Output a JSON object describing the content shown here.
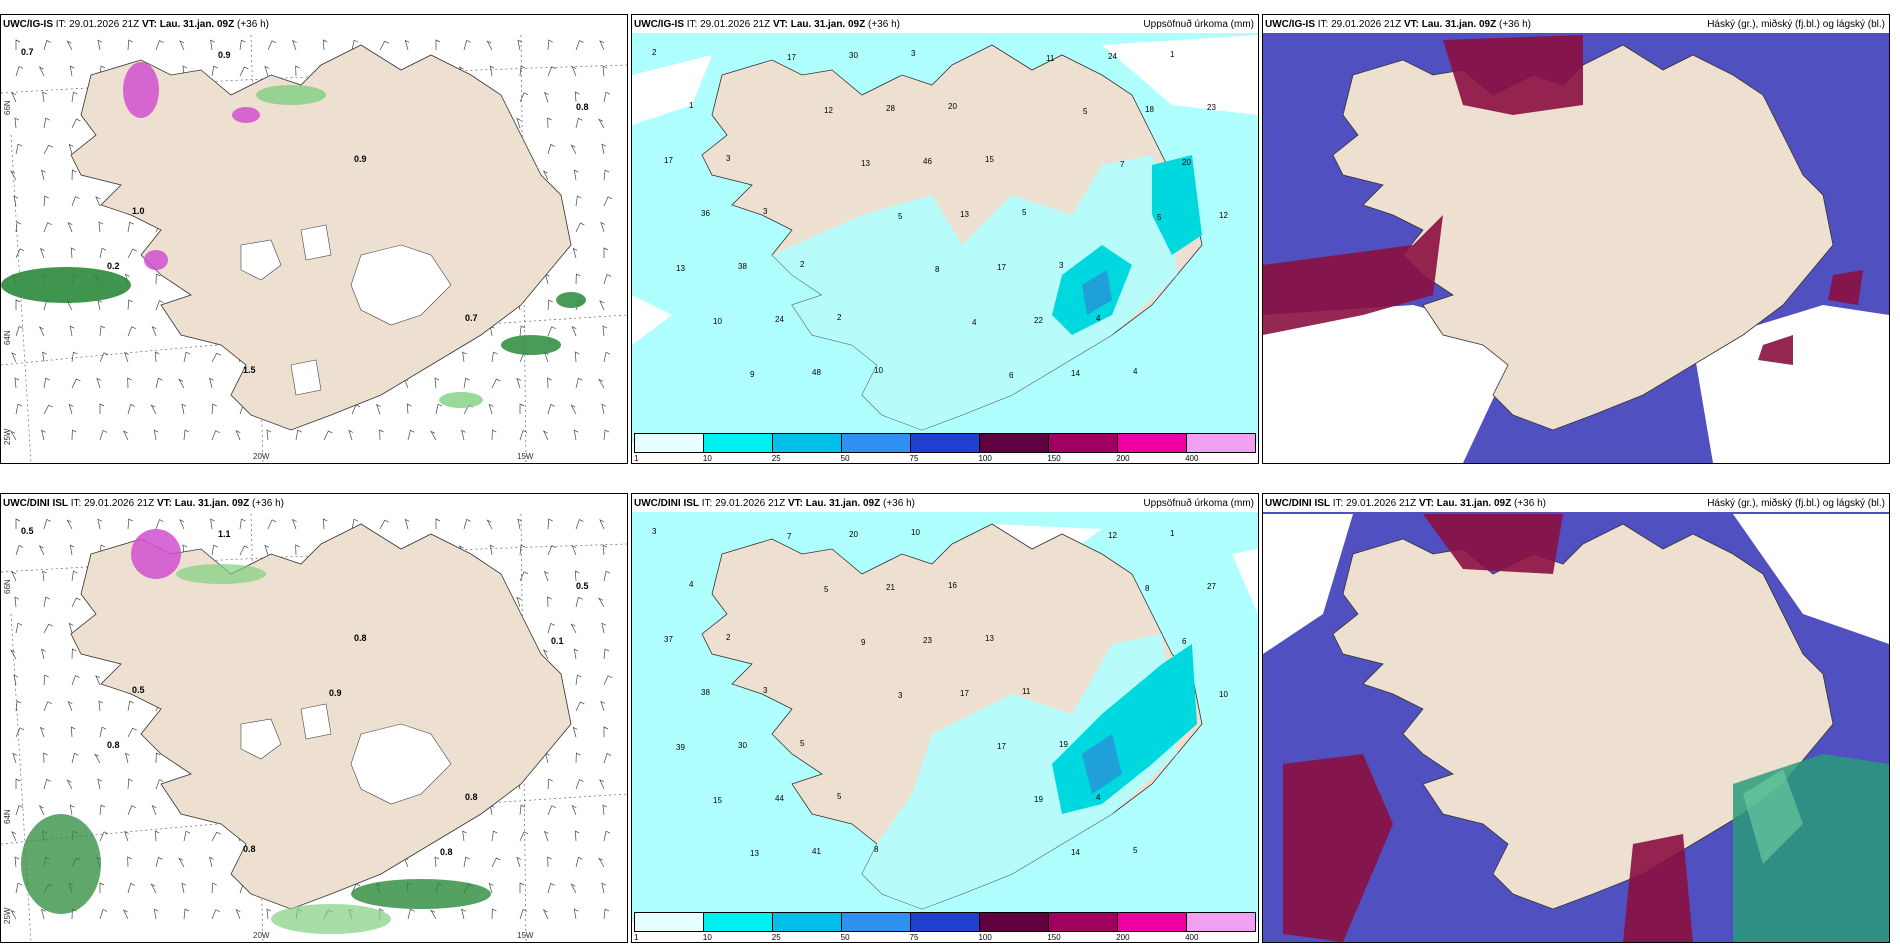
{
  "panels": [
    {
      "id": "p1",
      "model": "UWC/IG-IS",
      "it_label": "IT:",
      "it": "29.01.2026 21Z",
      "vt_label": "VT:",
      "vt": "Lau. 31.jan. 09Z",
      "lead": "(+36 h)",
      "right_title": "",
      "type": "wind"
    },
    {
      "id": "p2",
      "model": "UWC/IG-IS",
      "it_label": "IT:",
      "it": "29.01.2026 21Z",
      "vt_label": "VT:",
      "vt": "Lau. 31.jan. 09Z",
      "lead": "(+36 h)",
      "right_title": "Uppsöfnuð úrkoma (mm)",
      "type": "precip"
    },
    {
      "id": "p3",
      "model": "UWC/IG-IS",
      "it_label": "IT:",
      "it": "29.01.2026 21Z",
      "vt_label": "VT:",
      "vt": "Lau. 31.jan. 09Z",
      "lead": "(+36 h)",
      "right_title": "Háský (gr.), miðský (fj.bl.) og lágský (bl.)",
      "type": "cloud"
    },
    {
      "id": "p4",
      "model": "UWC/DINI ISL",
      "it_label": "IT:",
      "it": "29.01.2026 21Z",
      "vt_label": "VT:",
      "vt": "Lau. 31.jan. 09Z",
      "lead": "(+36 h)",
      "right_title": "",
      "type": "wind"
    },
    {
      "id": "p5",
      "model": "UWC/DINI ISL",
      "it_label": "IT:",
      "it": "29.01.2026 21Z",
      "vt_label": "VT:",
      "vt": "Lau. 31.jan. 09Z",
      "lead": "(+36 h)",
      "right_title": "Uppsöfnuð úrkoma (mm)",
      "type": "precip"
    },
    {
      "id": "p6",
      "model": "UWC/DINI ISL",
      "it_label": "IT:",
      "it": "29.01.2026 21Z",
      "vt_label": "VT:",
      "vt": "Lau. 31.jan. 09Z",
      "lead": "(+36 h)",
      "right_title": "Háský (gr.), miðský (fj.bl.) og lágský (bl.)",
      "type": "cloud"
    }
  ],
  "axis_labels": {
    "lon_20": "20W",
    "lon_15": "15W",
    "lat_66": "66N",
    "lat_64": "64N",
    "lon_25": "25W"
  },
  "colorbar": {
    "ticks": [
      "1",
      "10",
      "25",
      "50",
      "75",
      "100",
      "150",
      "200",
      "400"
    ],
    "colors": [
      "#e6ffff",
      "#00f0f0",
      "#00c0e8",
      "#3090f0",
      "#2040d0",
      "#600040",
      "#a00060",
      "#f000a0",
      "#f0a0f0"
    ]
  },
  "colors": {
    "land": "#ede0d0",
    "sea": "#ffffff",
    "precip_light": "#b0ffff",
    "precip_mid": "#00e0e0",
    "cloud_mid": "#5050c0",
    "cloud_high": "#8a1040",
    "wind_green": "#40a040",
    "wind_dark": "#006020",
    "snow_pink": "#d050d0"
  },
  "precip_values_top": [
    "2",
    "1",
    "3",
    "3",
    "2",
    "2",
    "10",
    "3",
    "20",
    "15",
    "5",
    "3",
    "4",
    "4",
    "1",
    "23",
    "17",
    "36",
    "38",
    "24",
    "48",
    "30",
    "28",
    "46",
    "13",
    "17",
    "22",
    "14",
    "24",
    "18",
    "20",
    "12",
    "13",
    "10",
    "9",
    "17",
    "12",
    "13",
    "5",
    "8",
    "4",
    "6",
    "11",
    "5",
    "7",
    "5"
  ],
  "precip_values_bottom": [
    "3",
    "4",
    "2",
    "3",
    "5",
    "5",
    "8",
    "10",
    "16",
    "13",
    "11",
    "19",
    "4",
    "5",
    "1",
    "27",
    "37",
    "38",
    "30",
    "44",
    "41",
    "20",
    "21",
    "23",
    "17",
    "17",
    "19",
    "14",
    "12",
    "8",
    "6",
    "10",
    "39",
    "15",
    "13",
    "7",
    "5",
    "9",
    "3"
  ],
  "wind_labels_top": [
    "0.7",
    "1.0",
    "1.5",
    "0.9",
    "0.7",
    "0.8",
    "0.2",
    "0.9"
  ],
  "wind_labels_bottom": [
    "0.5",
    "0.5",
    "0.8",
    "0.8",
    "0.8",
    "0.5",
    "0.8",
    "1.1",
    "0.9",
    "0.8",
    "0.1"
  ]
}
